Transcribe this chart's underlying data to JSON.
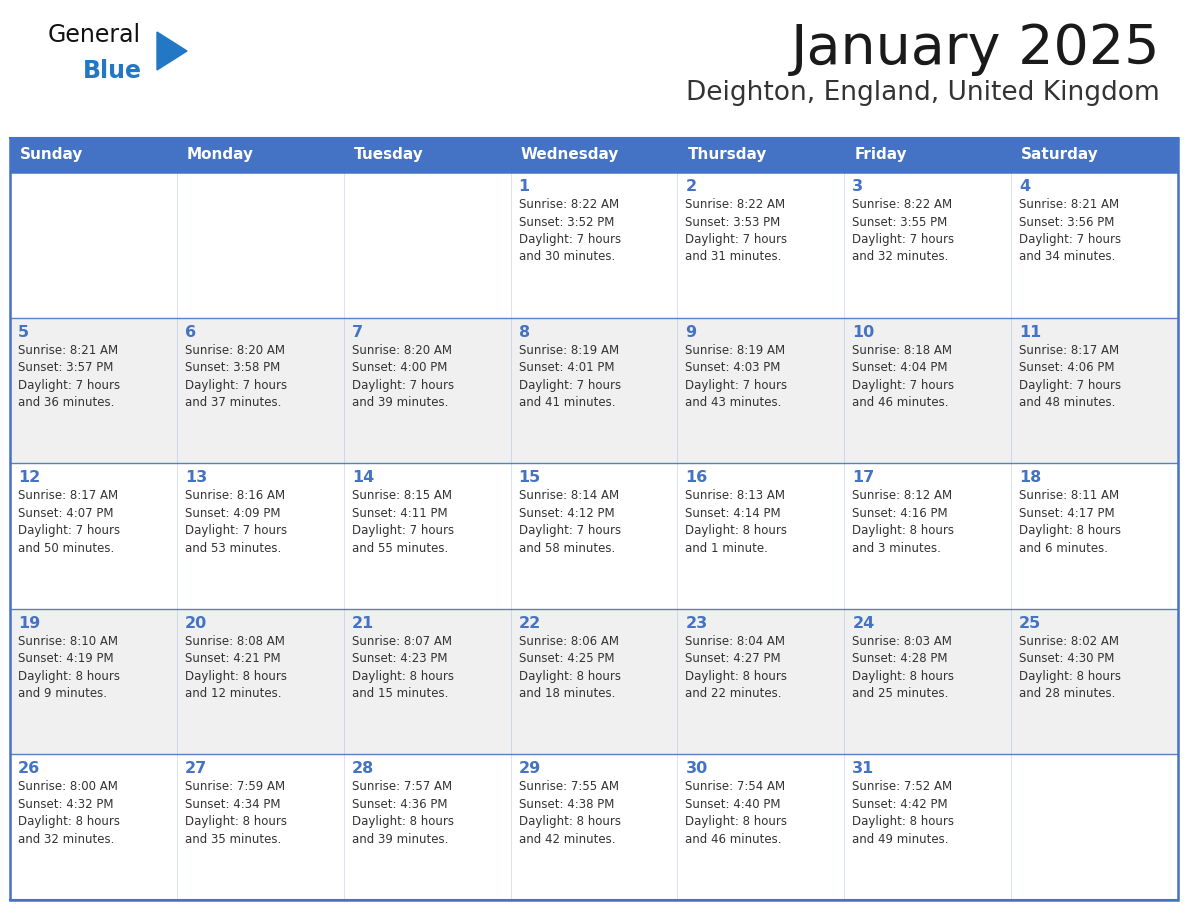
{
  "title": "January 2025",
  "subtitle": "Deighton, England, United Kingdom",
  "header_bg": "#4472C4",
  "header_text_color": "#FFFFFF",
  "cell_bg_even": "#FFFFFF",
  "cell_bg_odd": "#F0F0F0",
  "border_color": "#4472C4",
  "row_border_color": "#5a82c8",
  "title_color": "#1a1a1a",
  "subtitle_color": "#333333",
  "day_number_color": "#4472C4",
  "cell_text_color": "#333333",
  "days_of_week": [
    "Sunday",
    "Monday",
    "Tuesday",
    "Wednesday",
    "Thursday",
    "Friday",
    "Saturday"
  ],
  "weeks": [
    [
      {
        "day": "",
        "info": ""
      },
      {
        "day": "",
        "info": ""
      },
      {
        "day": "",
        "info": ""
      },
      {
        "day": "1",
        "info": "Sunrise: 8:22 AM\nSunset: 3:52 PM\nDaylight: 7 hours\nand 30 minutes."
      },
      {
        "day": "2",
        "info": "Sunrise: 8:22 AM\nSunset: 3:53 PM\nDaylight: 7 hours\nand 31 minutes."
      },
      {
        "day": "3",
        "info": "Sunrise: 8:22 AM\nSunset: 3:55 PM\nDaylight: 7 hours\nand 32 minutes."
      },
      {
        "day": "4",
        "info": "Sunrise: 8:21 AM\nSunset: 3:56 PM\nDaylight: 7 hours\nand 34 minutes."
      }
    ],
    [
      {
        "day": "5",
        "info": "Sunrise: 8:21 AM\nSunset: 3:57 PM\nDaylight: 7 hours\nand 36 minutes."
      },
      {
        "day": "6",
        "info": "Sunrise: 8:20 AM\nSunset: 3:58 PM\nDaylight: 7 hours\nand 37 minutes."
      },
      {
        "day": "7",
        "info": "Sunrise: 8:20 AM\nSunset: 4:00 PM\nDaylight: 7 hours\nand 39 minutes."
      },
      {
        "day": "8",
        "info": "Sunrise: 8:19 AM\nSunset: 4:01 PM\nDaylight: 7 hours\nand 41 minutes."
      },
      {
        "day": "9",
        "info": "Sunrise: 8:19 AM\nSunset: 4:03 PM\nDaylight: 7 hours\nand 43 minutes."
      },
      {
        "day": "10",
        "info": "Sunrise: 8:18 AM\nSunset: 4:04 PM\nDaylight: 7 hours\nand 46 minutes."
      },
      {
        "day": "11",
        "info": "Sunrise: 8:17 AM\nSunset: 4:06 PM\nDaylight: 7 hours\nand 48 minutes."
      }
    ],
    [
      {
        "day": "12",
        "info": "Sunrise: 8:17 AM\nSunset: 4:07 PM\nDaylight: 7 hours\nand 50 minutes."
      },
      {
        "day": "13",
        "info": "Sunrise: 8:16 AM\nSunset: 4:09 PM\nDaylight: 7 hours\nand 53 minutes."
      },
      {
        "day": "14",
        "info": "Sunrise: 8:15 AM\nSunset: 4:11 PM\nDaylight: 7 hours\nand 55 minutes."
      },
      {
        "day": "15",
        "info": "Sunrise: 8:14 AM\nSunset: 4:12 PM\nDaylight: 7 hours\nand 58 minutes."
      },
      {
        "day": "16",
        "info": "Sunrise: 8:13 AM\nSunset: 4:14 PM\nDaylight: 8 hours\nand 1 minute."
      },
      {
        "day": "17",
        "info": "Sunrise: 8:12 AM\nSunset: 4:16 PM\nDaylight: 8 hours\nand 3 minutes."
      },
      {
        "day": "18",
        "info": "Sunrise: 8:11 AM\nSunset: 4:17 PM\nDaylight: 8 hours\nand 6 minutes."
      }
    ],
    [
      {
        "day": "19",
        "info": "Sunrise: 8:10 AM\nSunset: 4:19 PM\nDaylight: 8 hours\nand 9 minutes."
      },
      {
        "day": "20",
        "info": "Sunrise: 8:08 AM\nSunset: 4:21 PM\nDaylight: 8 hours\nand 12 minutes."
      },
      {
        "day": "21",
        "info": "Sunrise: 8:07 AM\nSunset: 4:23 PM\nDaylight: 8 hours\nand 15 minutes."
      },
      {
        "day": "22",
        "info": "Sunrise: 8:06 AM\nSunset: 4:25 PM\nDaylight: 8 hours\nand 18 minutes."
      },
      {
        "day": "23",
        "info": "Sunrise: 8:04 AM\nSunset: 4:27 PM\nDaylight: 8 hours\nand 22 minutes."
      },
      {
        "day": "24",
        "info": "Sunrise: 8:03 AM\nSunset: 4:28 PM\nDaylight: 8 hours\nand 25 minutes."
      },
      {
        "day": "25",
        "info": "Sunrise: 8:02 AM\nSunset: 4:30 PM\nDaylight: 8 hours\nand 28 minutes."
      }
    ],
    [
      {
        "day": "26",
        "info": "Sunrise: 8:00 AM\nSunset: 4:32 PM\nDaylight: 8 hours\nand 32 minutes."
      },
      {
        "day": "27",
        "info": "Sunrise: 7:59 AM\nSunset: 4:34 PM\nDaylight: 8 hours\nand 35 minutes."
      },
      {
        "day": "28",
        "info": "Sunrise: 7:57 AM\nSunset: 4:36 PM\nDaylight: 8 hours\nand 39 minutes."
      },
      {
        "day": "29",
        "info": "Sunrise: 7:55 AM\nSunset: 4:38 PM\nDaylight: 8 hours\nand 42 minutes."
      },
      {
        "day": "30",
        "info": "Sunrise: 7:54 AM\nSunset: 4:40 PM\nDaylight: 8 hours\nand 46 minutes."
      },
      {
        "day": "31",
        "info": "Sunrise: 7:52 AM\nSunset: 4:42 PM\nDaylight: 8 hours\nand 49 minutes."
      },
      {
        "day": "",
        "info": ""
      }
    ]
  ],
  "logo_general_color": "#111111",
  "logo_blue_color": "#2278c4",
  "logo_triangle_color": "#2278c4",
  "fig_width": 11.88,
  "fig_height": 9.18,
  "dpi": 100
}
